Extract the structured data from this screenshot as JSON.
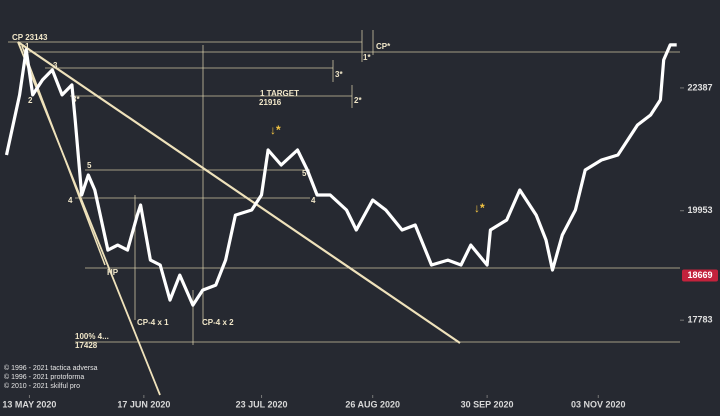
{
  "chart_data": {
    "type": "line",
    "x": [
      "2020-05-06",
      "2020-05-10",
      "2020-05-12",
      "2020-05-14",
      "2020-05-17",
      "2020-05-20",
      "2020-05-23",
      "2020-05-26",
      "2020-05-27",
      "2020-05-29",
      "2020-05-31",
      "2020-06-02",
      "2020-06-06",
      "2020-06-09",
      "2020-06-12",
      "2020-06-15",
      "2020-06-16",
      "2020-06-19",
      "2020-06-22",
      "2020-06-25",
      "2020-06-28",
      "2020-07-02",
      "2020-07-05",
      "2020-07-09",
      "2020-07-12",
      "2020-07-15",
      "2020-07-20",
      "2020-07-23",
      "2020-07-25",
      "2020-07-29",
      "2020-08-03",
      "2020-08-06",
      "2020-08-09",
      "2020-08-13",
      "2020-08-18",
      "2020-08-21",
      "2020-08-26",
      "2020-08-30",
      "2020-09-04",
      "2020-09-08",
      "2020-09-13",
      "2020-09-18",
      "2020-09-22",
      "2020-09-25",
      "2020-09-30",
      "2020-10-01",
      "2020-10-06",
      "2020-10-10",
      "2020-10-15",
      "2020-10-18",
      "2020-10-20",
      "2020-10-23",
      "2020-10-27",
      "2020-10-30",
      "2020-11-04",
      "2020-11-09",
      "2020-11-12",
      "2020-11-15",
      "2020-11-19",
      "2020-11-22",
      "2020-11-23",
      "2020-11-25",
      "2020-11-27"
    ],
    "values": [
      21058,
      22248,
      23143,
      22248,
      22546,
      22744,
      22248,
      22447,
      21752,
      20264,
      20661,
      20363,
      19173,
      19272,
      19173,
      19867,
      20066,
      18975,
      18876,
      18181,
      18677,
      18082,
      18379,
      18478,
      18975,
      19867,
      19967,
      20264,
      21157,
      20859,
      21157,
      20760,
      20264,
      20264,
      19967,
      19570,
      20165,
      19967,
      19570,
      19669,
      18876,
      18975,
      18876,
      19272,
      18876,
      19570,
      19768,
      20363,
      19867,
      19372,
      18777,
      19471,
      19967,
      20760,
      20959,
      21058,
      21355,
      21653,
      21851,
      22149,
      22943,
      23240,
      23240
    ],
    "color": "#ffffff",
    "xlim": [
      "2020-05-04",
      "2020-11-28"
    ],
    "xticks": [
      {
        "value": "2020-05-13",
        "label": "13 MAY 2020"
      },
      {
        "value": "2020-06-17",
        "label": "17 JUN 2020"
      },
      {
        "value": "2020-07-23",
        "label": "23 JUL 2020"
      },
      {
        "value": "2020-08-26",
        "label": "26 AUG 2020"
      },
      {
        "value": "2020-09-30",
        "label": "30 SEP 2020"
      },
      {
        "value": "2020-11-03",
        "label": "03 NOV 2020"
      }
    ],
    "ylim": [
      16300,
      24130
    ],
    "yticks": [
      17783,
      19953,
      22387
    ],
    "price_marker": 18669,
    "annotations": [
      "CP 23143",
      "1",
      "2",
      "3",
      "3*",
      "1*",
      "CP*",
      "3*",
      "1 TARGET",
      "21916",
      "2*",
      "5",
      "5*",
      "4",
      "4",
      "HP",
      "CP-4 x 1",
      "CP-4 x 2",
      "100%  4...",
      "17428",
      "↓*",
      "↓*"
    ],
    "copyright": [
      "© 1996 - 2021 tactica adversa",
      "© 1996 - 2021 protoforma",
      "© 2010 - 2021 skilful pro"
    ]
  }
}
